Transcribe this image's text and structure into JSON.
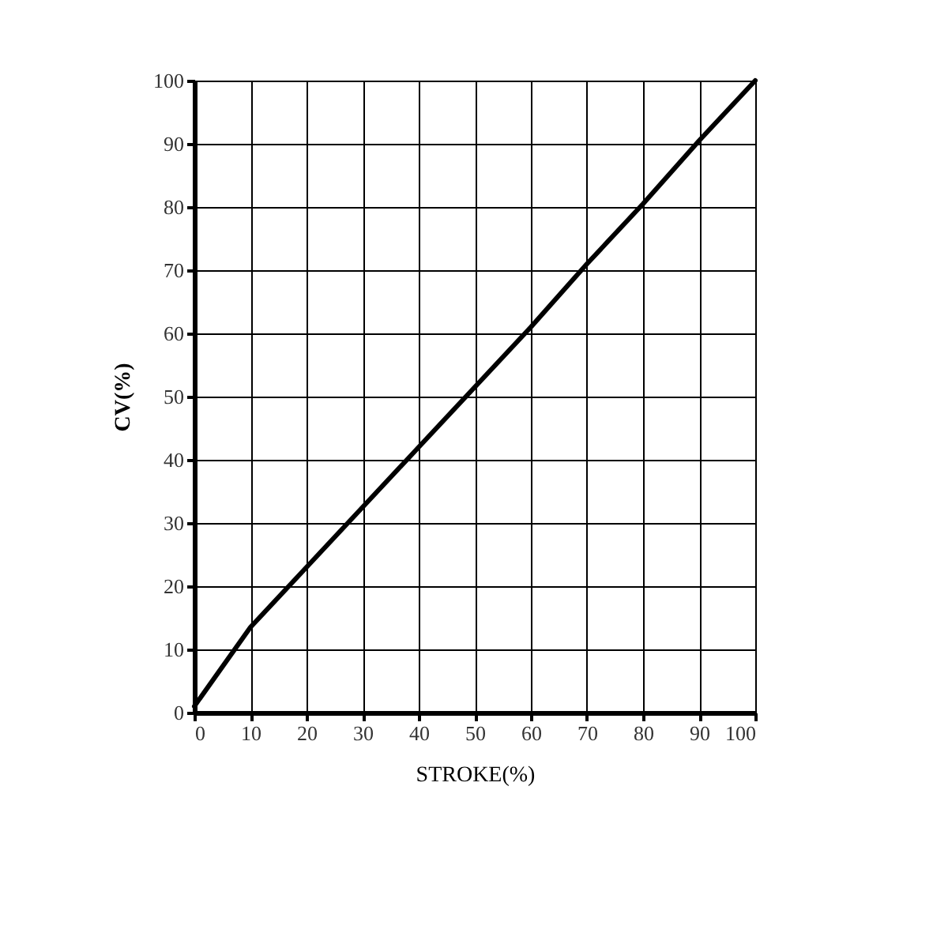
{
  "chart_data": {
    "type": "line",
    "xlabel": "STROKE(%)",
    "ylabel": "CV(%)",
    "x": [
      0,
      10,
      20,
      30,
      40,
      50,
      60,
      70,
      80,
      90,
      100
    ],
    "series": [
      {
        "color": "#000000",
        "values": [
          1,
          13.5,
          23,
          32.5,
          42,
          51.5,
          61,
          71,
          80.5,
          90.5,
          100
        ]
      }
    ],
    "xlim": [
      0,
      100
    ],
    "ylim": [
      0,
      100
    ],
    "xticks": [
      0,
      10,
      20,
      30,
      40,
      50,
      60,
      70,
      80,
      90,
      100
    ],
    "yticks": [
      0,
      10,
      20,
      30,
      40,
      50,
      60,
      70,
      80,
      90,
      100
    ],
    "grid": true,
    "marker": "none",
    "line_style": "solid",
    "legend": false
  }
}
